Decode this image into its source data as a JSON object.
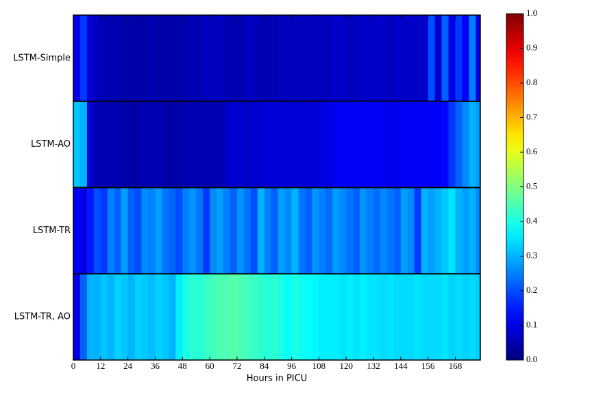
{
  "chart_data": {
    "type": "heatmap",
    "xlabel": "Hours in PICU",
    "categories": [
      "LSTM-Simple",
      "LSTM-AO",
      "LSTM-TR",
      "LSTM-TR, AO"
    ],
    "bins": [
      0,
      3,
      6,
      9,
      12,
      15,
      18,
      21,
      24,
      27,
      30,
      33,
      36,
      39,
      42,
      45,
      48,
      51,
      54,
      57,
      60,
      63,
      66,
      69,
      72,
      75,
      78,
      81,
      84,
      87,
      90,
      93,
      96,
      99,
      102,
      105,
      108,
      111,
      114,
      117,
      120,
      123,
      126,
      129,
      132,
      135,
      138,
      141,
      144,
      147,
      150,
      153,
      156,
      159,
      162,
      165,
      168,
      171,
      174,
      177,
      180
    ],
    "values": [
      [
        0.1,
        0.18,
        0.08,
        0.06,
        0.05,
        0.05,
        0.05,
        0.04,
        0.04,
        0.04,
        0.04,
        0.05,
        0.04,
        0.04,
        0.04,
        0.04,
        0.05,
        0.05,
        0.05,
        0.06,
        0.06,
        0.06,
        0.05,
        0.05,
        0.05,
        0.06,
        0.06,
        0.05,
        0.05,
        0.05,
        0.06,
        0.06,
        0.06,
        0.06,
        0.06,
        0.06,
        0.06,
        0.06,
        0.07,
        0.07,
        0.06,
        0.06,
        0.07,
        0.07,
        0.07,
        0.07,
        0.06,
        0.07,
        0.07,
        0.07,
        0.07,
        0.07,
        0.2,
        0.08,
        0.22,
        0.1,
        0.18,
        0.12,
        0.25,
        0.1
      ],
      [
        0.32,
        0.3,
        0.08,
        0.05,
        0.05,
        0.05,
        0.05,
        0.04,
        0.04,
        0.04,
        0.05,
        0.05,
        0.05,
        0.04,
        0.04,
        0.04,
        0.05,
        0.05,
        0.05,
        0.05,
        0.05,
        0.05,
        0.07,
        0.08,
        0.08,
        0.07,
        0.08,
        0.08,
        0.09,
        0.09,
        0.09,
        0.09,
        0.09,
        0.09,
        0.09,
        0.09,
        0.1,
        0.1,
        0.11,
        0.12,
        0.12,
        0.12,
        0.12,
        0.12,
        0.12,
        0.11,
        0.11,
        0.11,
        0.12,
        0.12,
        0.12,
        0.12,
        0.12,
        0.12,
        0.13,
        0.18,
        0.22,
        0.26,
        0.3,
        0.28
      ],
      [
        0.12,
        0.1,
        0.15,
        0.2,
        0.18,
        0.25,
        0.22,
        0.28,
        0.22,
        0.2,
        0.26,
        0.25,
        0.28,
        0.24,
        0.22,
        0.2,
        0.25,
        0.27,
        0.24,
        0.18,
        0.26,
        0.28,
        0.25,
        0.22,
        0.27,
        0.24,
        0.2,
        0.3,
        0.25,
        0.22,
        0.28,
        0.26,
        0.3,
        0.24,
        0.22,
        0.27,
        0.25,
        0.23,
        0.28,
        0.26,
        0.24,
        0.22,
        0.27,
        0.25,
        0.23,
        0.26,
        0.24,
        0.22,
        0.28,
        0.26,
        0.18,
        0.3,
        0.28,
        0.3,
        0.32,
        0.35,
        0.3,
        0.28,
        0.3,
        0.26
      ],
      [
        0.1,
        0.22,
        0.3,
        0.3,
        0.32,
        0.3,
        0.33,
        0.32,
        0.3,
        0.33,
        0.32,
        0.31,
        0.33,
        0.32,
        0.3,
        0.36,
        0.4,
        0.42,
        0.41,
        0.43,
        0.44,
        0.45,
        0.45,
        0.46,
        0.45,
        0.44,
        0.43,
        0.42,
        0.41,
        0.42,
        0.4,
        0.38,
        0.4,
        0.39,
        0.38,
        0.37,
        0.36,
        0.36,
        0.36,
        0.35,
        0.36,
        0.35,
        0.36,
        0.35,
        0.35,
        0.34,
        0.35,
        0.34,
        0.34,
        0.34,
        0.35,
        0.34,
        0.34,
        0.34,
        0.35,
        0.33,
        0.34,
        0.33,
        0.34,
        0.33
      ]
    ],
    "xlim": [
      0,
      179
    ],
    "xticks": [
      0,
      12,
      24,
      36,
      48,
      60,
      72,
      84,
      96,
      108,
      120,
      132,
      144,
      156,
      168
    ],
    "clim": [
      0,
      1
    ],
    "cticks": [
      {
        "value": 0,
        "label": "0.0"
      },
      0.1,
      0.2,
      0.3,
      0.4,
      0.5,
      0.6,
      0.7,
      0.8,
      0.9,
      {
        "value": 1,
        "label": "1.0"
      }
    ],
    "colormap": "jet"
  }
}
